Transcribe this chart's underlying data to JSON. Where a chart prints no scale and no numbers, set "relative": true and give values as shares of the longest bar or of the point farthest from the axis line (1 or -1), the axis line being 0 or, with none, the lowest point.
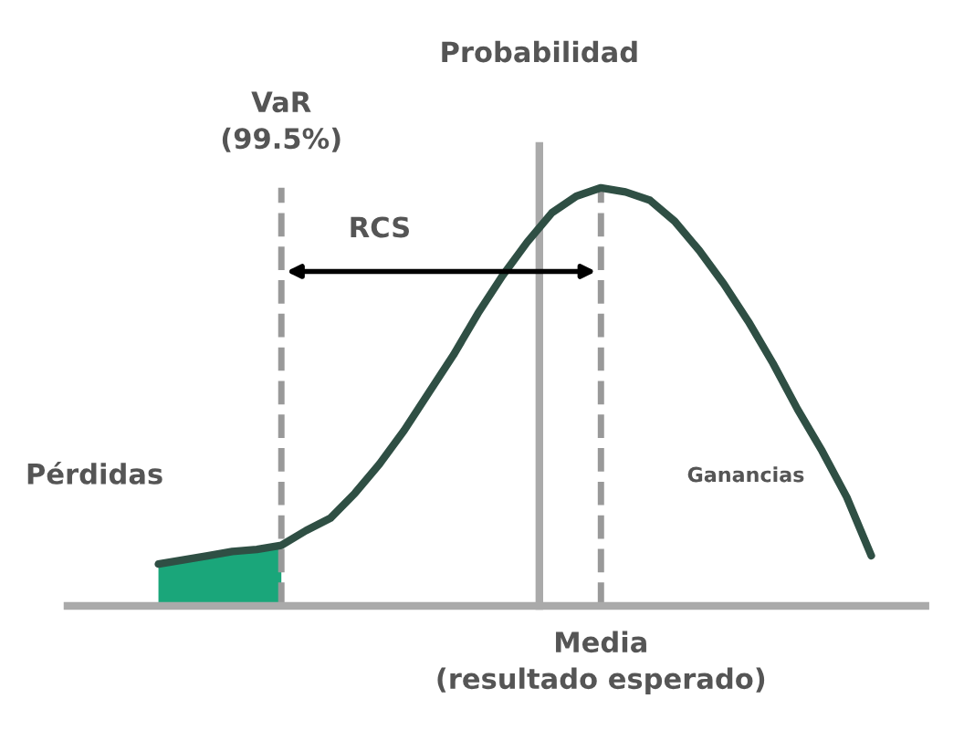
{
  "chart_data": {
    "type": "line",
    "relative": true,
    "legend": false,
    "marker": "none",
    "line_style": "solid",
    "categories": [
      null,
      null,
      null,
      null,
      null,
      null,
      null,
      null,
      null,
      null,
      null,
      null,
      null,
      null,
      null,
      null,
      null,
      null,
      null,
      null,
      null,
      null,
      null,
      null,
      null,
      null,
      null,
      null,
      null,
      null
    ],
    "series": [
      {
        "color": "#2f4f44",
        "values": [
          0.1,
          0.11,
          0.12,
          0.13,
          0.135,
          0.145,
          0.18,
          0.21,
          0.27,
          0.34,
          0.42,
          0.51,
          0.6,
          0.7,
          0.79,
          0.87,
          0.94,
          0.98,
          1.0,
          0.99,
          0.97,
          0.92,
          0.85,
          0.77,
          0.68,
          0.58,
          0.47,
          0.37,
          0.26,
          0.12
        ]
      }
    ],
    "annotations": [
      "Probabilidad",
      "VaR\n(99.5%)",
      "RCS",
      "Pérdidas",
      "Ganancias",
      "Media\n(resultado esperado)"
    ]
  }
}
